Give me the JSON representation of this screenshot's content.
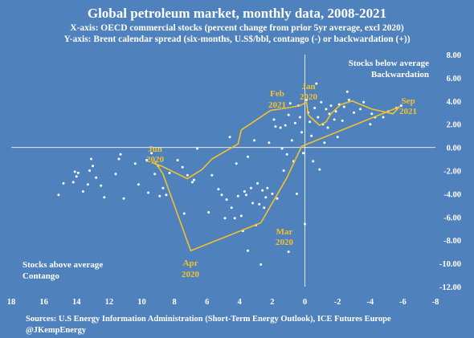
{
  "chart_data": {
    "type": "scatter",
    "title": "Global petroleum market, monthly data, 2008-2021",
    "subtitle_x": "X-axis: OECD commercial stocks (percent change from prior 5yr average, excl 2020)",
    "subtitle_y": "Y-axis: Brent calendar spread (six-months, U.S$/bbl, contango (-) or backwardation (+))",
    "xlim": [
      18,
      -8
    ],
    "ylim": [
      -12,
      8
    ],
    "x_reversed": true,
    "x_ticks": [
      "18",
      "16",
      "14",
      "12",
      "10",
      "8",
      "6",
      "4",
      "2",
      "0",
      "-2",
      "-4",
      "-6",
      "-8"
    ],
    "y_ticks": [
      "8.00",
      "6.00",
      "4.00",
      "2.00",
      "0.00",
      "-2.00",
      "-4.00",
      "-6.00",
      "-8.00",
      "-10.00",
      "-12.00"
    ],
    "grid": false,
    "colors": {
      "background": "#4f81bd",
      "points": "#ffffff",
      "path": "#f2c12e"
    },
    "points": [
      [
        15.1,
        -4.1
      ],
      [
        14.8,
        -3.1
      ],
      [
        14.2,
        -3.0
      ],
      [
        14.1,
        -2.1
      ],
      [
        14.0,
        -2.5
      ],
      [
        13.9,
        -2.2
      ],
      [
        13.6,
        -3.8
      ],
      [
        13.3,
        -3.2
      ],
      [
        13.2,
        -2.0
      ],
      [
        13.1,
        -1.0
      ],
      [
        13.0,
        -1.6
      ],
      [
        12.8,
        -2.6
      ],
      [
        12.5,
        -3.3
      ],
      [
        12.3,
        -4.3
      ],
      [
        11.6,
        -2.3
      ],
      [
        11.4,
        -1.0
      ],
      [
        11.3,
        -0.6
      ],
      [
        11.1,
        -4.4
      ],
      [
        10.4,
        -1.4
      ],
      [
        10.2,
        -3.2
      ],
      [
        9.7,
        -1.1
      ],
      [
        9.6,
        -3.9
      ],
      [
        9.4,
        -0.5
      ],
      [
        9.2,
        -2.3
      ],
      [
        9.0,
        -1.6
      ],
      [
        8.9,
        -4.2
      ],
      [
        8.7,
        -3.5
      ],
      [
        8.5,
        -4.1
      ],
      [
        8.3,
        -2.2
      ],
      [
        7.8,
        -1.1
      ],
      [
        7.5,
        -1.7
      ],
      [
        7.4,
        -5.7
      ],
      [
        7.2,
        -2.4
      ],
      [
        6.9,
        -3.0
      ],
      [
        6.8,
        -2.8
      ],
      [
        6.6,
        -0.1
      ],
      [
        5.9,
        -5.6
      ],
      [
        5.7,
        -2.4
      ],
      [
        5.3,
        -3.6
      ],
      [
        5.1,
        -4.1
      ],
      [
        4.9,
        -6.1
      ],
      [
        4.8,
        -4.5
      ],
      [
        4.6,
        0.9
      ],
      [
        4.5,
        -5.2
      ],
      [
        4.3,
        -6.1
      ],
      [
        4.2,
        -1.4
      ],
      [
        4.1,
        -4.2
      ],
      [
        3.9,
        -5.9
      ],
      [
        3.7,
        -3.8
      ],
      [
        3.6,
        -4.1
      ],
      [
        3.5,
        -0.8
      ],
      [
        3.3,
        -3.5
      ],
      [
        3.2,
        -4.8
      ],
      [
        3.1,
        0.6
      ],
      [
        3.0,
        -6.7
      ],
      [
        2.9,
        -3.1
      ],
      [
        2.8,
        -4.9
      ],
      [
        2.6,
        -3.7
      ],
      [
        2.5,
        -5.2
      ],
      [
        2.4,
        -4.3
      ],
      [
        2.3,
        -3.5
      ],
      [
        2.2,
        0.4
      ],
      [
        2.0,
        -4.0
      ],
      [
        1.9,
        2.4
      ],
      [
        1.8,
        1.8
      ],
      [
        1.7,
        -4.4
      ],
      [
        1.5,
        1.7
      ],
      [
        1.4,
        -0.1
      ],
      [
        1.3,
        -2.0
      ],
      [
        1.2,
        1.9
      ],
      [
        1.1,
        -0.6
      ],
      [
        1.0,
        2.8
      ],
      [
        0.9,
        3.8
      ],
      [
        0.8,
        0.6
      ],
      [
        0.7,
        -1.2
      ],
      [
        0.6,
        2.1
      ],
      [
        0.5,
        -4.0
      ],
      [
        0.4,
        3.6
      ],
      [
        0.3,
        2.6
      ],
      [
        0.2,
        1.3
      ],
      [
        0.1,
        -0.5
      ],
      [
        0.0,
        -6.6
      ],
      [
        -0.1,
        4.1
      ],
      [
        -0.2,
        3.0
      ],
      [
        -0.3,
        2.2
      ],
      [
        -0.4,
        1.0
      ],
      [
        -0.5,
        -1.2
      ],
      [
        -0.6,
        3.4
      ],
      [
        -0.7,
        5.5
      ],
      [
        -0.8,
        2.6
      ],
      [
        -0.9,
        -1.9
      ],
      [
        -1.0,
        3.9
      ],
      [
        -1.1,
        2.0
      ],
      [
        -1.2,
        0.4
      ],
      [
        -1.3,
        3.3
      ],
      [
        -1.4,
        1.7
      ],
      [
        -1.5,
        2.9
      ],
      [
        -1.6,
        3.6
      ],
      [
        -1.8,
        2.4
      ],
      [
        -1.9,
        3.1
      ],
      [
        -2.0,
        0.9
      ],
      [
        -2.1,
        3.7
      ],
      [
        -2.3,
        2.3
      ],
      [
        -2.4,
        3.5
      ],
      [
        -2.6,
        4.8
      ],
      [
        -2.7,
        4.1
      ],
      [
        -3.0,
        3.0
      ],
      [
        -3.4,
        3.3
      ],
      [
        -3.6,
        3.9
      ],
      [
        -4.0,
        2.0
      ],
      [
        -4.1,
        2.9
      ],
      [
        -4.3,
        2.6
      ],
      [
        -4.8,
        2.6
      ],
      [
        -5.1,
        3.1
      ],
      [
        -5.6,
        3.4
      ],
      [
        -5.9,
        3.6
      ],
      [
        3.5,
        -8.9
      ],
      [
        2.7,
        -10.1
      ],
      [
        1.0,
        -9.0
      ],
      [
        3.8,
        -7.2
      ]
    ],
    "path": [
      [
        9.4,
        -1.3
      ],
      [
        8.8,
        -1.6
      ],
      [
        7.2,
        -2.7
      ],
      [
        6.3,
        -1.9
      ],
      [
        5.7,
        -1.0
      ],
      [
        4.1,
        0.3
      ],
      [
        3.9,
        1.5
      ],
      [
        2.1,
        3.2
      ],
      [
        1.1,
        3.4
      ],
      [
        0.3,
        3.6
      ],
      [
        -0.1,
        3.9
      ],
      [
        -0.2,
        2.8
      ],
      [
        -0.9,
        1.9
      ],
      [
        -1.3,
        2.2
      ],
      [
        -1.6,
        2.9
      ],
      [
        -2.2,
        3.7
      ],
      [
        -2.9,
        4.0
      ],
      [
        -4.1,
        3.3
      ],
      [
        -5.4,
        2.9
      ],
      [
        -5.8,
        3.5
      ],
      [
        0.2,
        0.1
      ],
      [
        1.1,
        -2.6
      ],
      [
        2.7,
        -6.5
      ],
      [
        7.0,
        -8.9
      ],
      [
        8.7,
        -2.3
      ],
      [
        9.2,
        -1.2
      ]
    ],
    "labels": {
      "jun2020": [
        "Jun",
        "2020"
      ],
      "feb2021": [
        "Feb",
        "2021"
      ],
      "jan2020": [
        "Jan",
        "2020"
      ],
      "sep2021": [
        "Sep",
        "2021"
      ],
      "mar2020": [
        "Mar",
        "2020"
      ],
      "apr2020": [
        "Apr",
        "2020"
      ]
    },
    "annotations": {
      "top_right": [
        "Stocks below average",
        "Backwardation"
      ],
      "bottom_left": [
        "Stocks above average",
        "Contango"
      ]
    },
    "sources": [
      "Sources: U.S Energy Information Administration (Short-Term Energy Outlook), ICE Futures Europe",
      "@JKempEnergy"
    ]
  }
}
